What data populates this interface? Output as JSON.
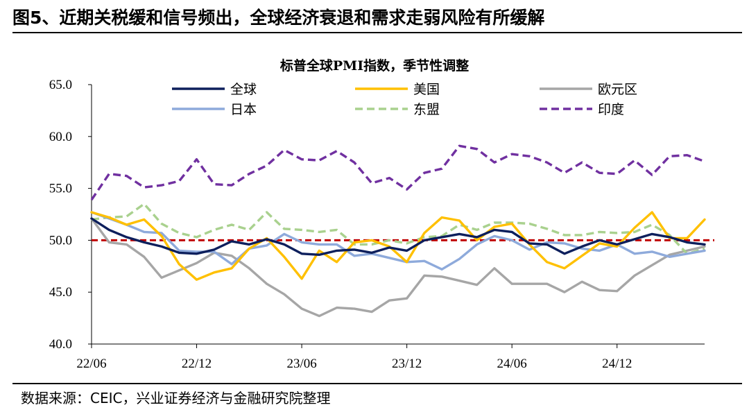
{
  "header": {
    "title": "图5、近期关税缓和信号频出，全球经济衰退和需求走弱风险有所缓解"
  },
  "footer": {
    "source": "数据来源：CEIC，兴业证券经济与金融研究院整理"
  },
  "chart_data": {
    "type": "line",
    "title": "标普全球PMI指数，季节性调整",
    "xlabel": "",
    "ylabel": "",
    "x": [
      "22/06",
      "22/07",
      "22/08",
      "22/09",
      "22/10",
      "22/11",
      "22/12",
      "23/01",
      "23/02",
      "23/03",
      "23/04",
      "23/05",
      "23/06",
      "23/07",
      "23/08",
      "23/09",
      "23/10",
      "23/11",
      "23/12",
      "24/01",
      "24/02",
      "24/03",
      "24/04",
      "24/05",
      "24/06",
      "24/07",
      "24/08",
      "24/09",
      "24/10",
      "24/11",
      "24/12",
      "25/01",
      "25/02",
      "25/03",
      "25/04",
      "25/05"
    ],
    "x_tick_labels": [
      "22/06",
      "22/12",
      "23/06",
      "23/12",
      "24/06",
      "24/12"
    ],
    "ylim": [
      40,
      65
    ],
    "y_ticks": [
      "40.0",
      "45.0",
      "50.0",
      "55.0",
      "60.0",
      "65.0"
    ],
    "legend_position": "top",
    "series": [
      {
        "name": "全球",
        "color": "#0d1f5c",
        "dash": "solid",
        "values": [
          52.1,
          51.0,
          50.3,
          49.8,
          49.4,
          48.8,
          48.7,
          49.1,
          49.9,
          49.6,
          50.1,
          49.6,
          48.7,
          48.6,
          49.0,
          49.1,
          48.8,
          49.3,
          49.0,
          50.0,
          50.3,
          50.6,
          50.3,
          51.0,
          50.8,
          49.7,
          49.6,
          48.7,
          49.4,
          50.0,
          49.6,
          50.1,
          50.6,
          50.3,
          49.8,
          49.6
        ]
      },
      {
        "name": "美国",
        "color": "#ffc000",
        "dash": "solid",
        "values": [
          52.7,
          52.2,
          51.5,
          52.0,
          50.4,
          47.7,
          46.2,
          46.9,
          47.3,
          49.2,
          50.2,
          48.4,
          46.3,
          49.0,
          47.9,
          49.8,
          50.0,
          49.4,
          47.9,
          50.7,
          52.2,
          51.9,
          50.0,
          51.3,
          51.6,
          49.6,
          47.9,
          47.3,
          48.5,
          49.7,
          49.4,
          51.2,
          52.7,
          50.2,
          50.2,
          52.0
        ]
      },
      {
        "name": "欧元区",
        "color": "#a6a6a6",
        "dash": "solid",
        "values": [
          52.1,
          49.8,
          49.6,
          48.4,
          46.4,
          47.1,
          47.8,
          48.8,
          48.5,
          47.3,
          45.8,
          44.8,
          43.4,
          42.7,
          43.5,
          43.4,
          43.1,
          44.2,
          44.4,
          46.6,
          46.5,
          46.1,
          45.7,
          47.3,
          45.8,
          45.8,
          45.8,
          45.0,
          46.0,
          45.2,
          45.1,
          46.6,
          47.6,
          48.6,
          49.0,
          49.4
        ]
      },
      {
        "name": "日本",
        "color": "#8eaadb",
        "dash": "solid",
        "values": [
          52.7,
          52.1,
          51.5,
          50.8,
          50.7,
          49.0,
          48.9,
          48.9,
          47.7,
          49.2,
          49.5,
          50.6,
          49.8,
          49.6,
          49.6,
          48.5,
          48.7,
          48.3,
          47.9,
          48.0,
          47.2,
          48.2,
          49.6,
          50.4,
          50.0,
          49.1,
          49.8,
          49.7,
          49.2,
          49.0,
          49.6,
          48.7,
          48.9,
          48.4,
          48.7,
          49.0
        ]
      },
      {
        "name": "东盟",
        "color": "#a9d18e",
        "dash": "dashed",
        "values": [
          52.0,
          52.2,
          52.3,
          53.5,
          51.6,
          50.7,
          50.3,
          51.0,
          51.5,
          51.0,
          52.7,
          51.1,
          51.0,
          50.8,
          51.0,
          49.6,
          49.6,
          50.0,
          49.7,
          50.3,
          50.4,
          51.5,
          51.0,
          51.7,
          51.7,
          51.6,
          51.1,
          50.5,
          50.5,
          50.8,
          50.7,
          50.8,
          51.5,
          50.5,
          48.7,
          49.2
        ]
      },
      {
        "name": "印度",
        "color": "#7030a0",
        "dash": "dashed",
        "values": [
          53.9,
          56.4,
          56.2,
          55.1,
          55.3,
          55.7,
          57.8,
          55.4,
          55.3,
          56.4,
          57.2,
          58.7,
          57.8,
          57.7,
          58.6,
          57.5,
          55.5,
          56.0,
          54.9,
          56.5,
          56.9,
          59.1,
          58.8,
          57.5,
          58.3,
          58.1,
          57.5,
          56.5,
          57.5,
          56.5,
          56.4,
          57.7,
          56.3,
          58.1,
          58.2,
          57.6
        ]
      }
    ],
    "reference_line": {
      "value": 50.0,
      "color": "#c00000",
      "dash": "dashed"
    }
  }
}
